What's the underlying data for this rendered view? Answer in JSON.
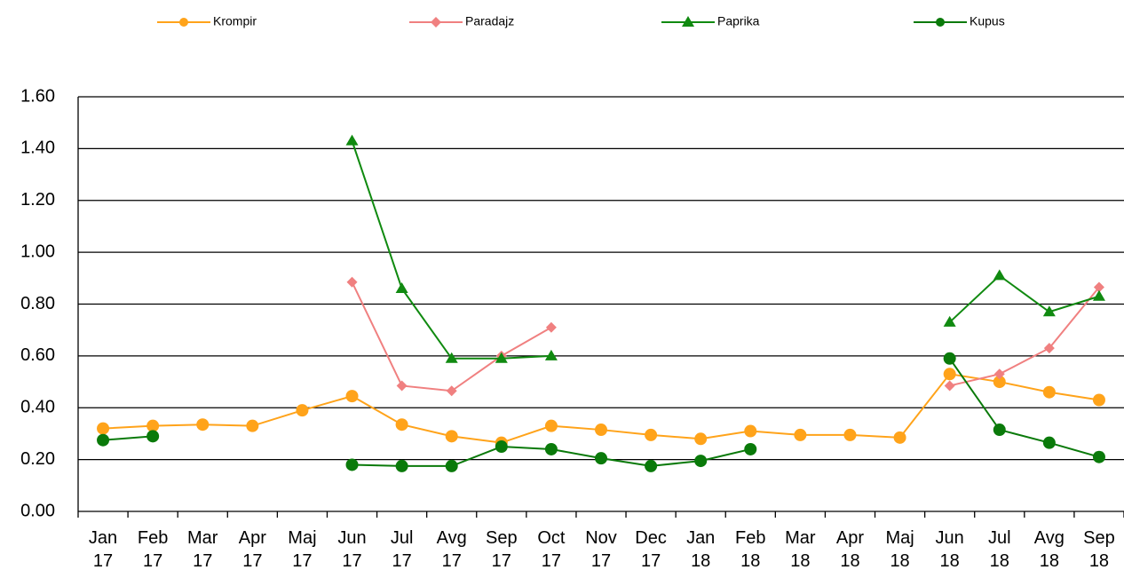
{
  "chart_data": {
    "type": "line",
    "categories": [
      "Jan 17",
      "Feb 17",
      "Mar 17",
      "Apr 17",
      "Maj 17",
      "Jun 17",
      "Jul 17",
      "Avg 17",
      "Sep 17",
      "Oct 17",
      "Nov 17",
      "Dec 17",
      "Jan 18",
      "Feb 18",
      "Mar 18",
      "Apr 18",
      "Maj 18",
      "Jun 18",
      "Jul 18",
      "Avg 18",
      "Sep 18"
    ],
    "series": [
      {
        "name": "Krompir",
        "color": "#ffa31a",
        "marker": "circle",
        "values": [
          0.32,
          0.33,
          0.335,
          0.33,
          0.39,
          0.445,
          0.335,
          0.29,
          0.265,
          0.33,
          0.315,
          0.295,
          0.28,
          0.31,
          0.295,
          0.295,
          0.285,
          0.53,
          0.5,
          0.46,
          0.43
        ]
      },
      {
        "name": "Paradajz",
        "color": "#f08080",
        "marker": "diamond",
        "values": [
          null,
          null,
          null,
          null,
          null,
          0.885,
          0.485,
          0.465,
          0.6,
          0.71,
          null,
          null,
          null,
          null,
          null,
          null,
          null,
          0.485,
          0.53,
          0.63,
          0.865
        ]
      },
      {
        "name": "Paprika",
        "color": "#108a10",
        "marker": "triangle",
        "values": [
          null,
          null,
          null,
          null,
          null,
          1.43,
          0.86,
          0.59,
          0.59,
          0.6,
          null,
          null,
          null,
          null,
          null,
          null,
          null,
          0.73,
          0.91,
          0.77,
          0.83
        ]
      },
      {
        "name": "Kupus",
        "color": "#0a7a0a",
        "marker": "circle",
        "values": [
          0.275,
          0.29,
          null,
          null,
          null,
          0.18,
          0.175,
          0.175,
          0.25,
          0.24,
          0.205,
          0.175,
          0.195,
          0.24,
          null,
          null,
          null,
          0.59,
          0.315,
          0.265,
          0.21
        ]
      }
    ],
    "ylim": [
      0,
      1.6
    ],
    "yticks": [
      {
        "value": 0,
        "label": "0.00"
      },
      {
        "value": 0.2,
        "label": "0.20"
      },
      {
        "value": 0.4,
        "label": "0.40"
      },
      {
        "value": 0.6,
        "label": "0.60"
      },
      {
        "value": 0.8,
        "label": "0.80"
      },
      {
        "value": 1,
        "label": "1.00"
      },
      {
        "value": 1.2,
        "label": "1.20"
      },
      {
        "value": 1.4,
        "label": "1.40"
      },
      {
        "value": 1.6,
        "label": "1.60"
      }
    ],
    "grid": true,
    "legend": "top"
  }
}
